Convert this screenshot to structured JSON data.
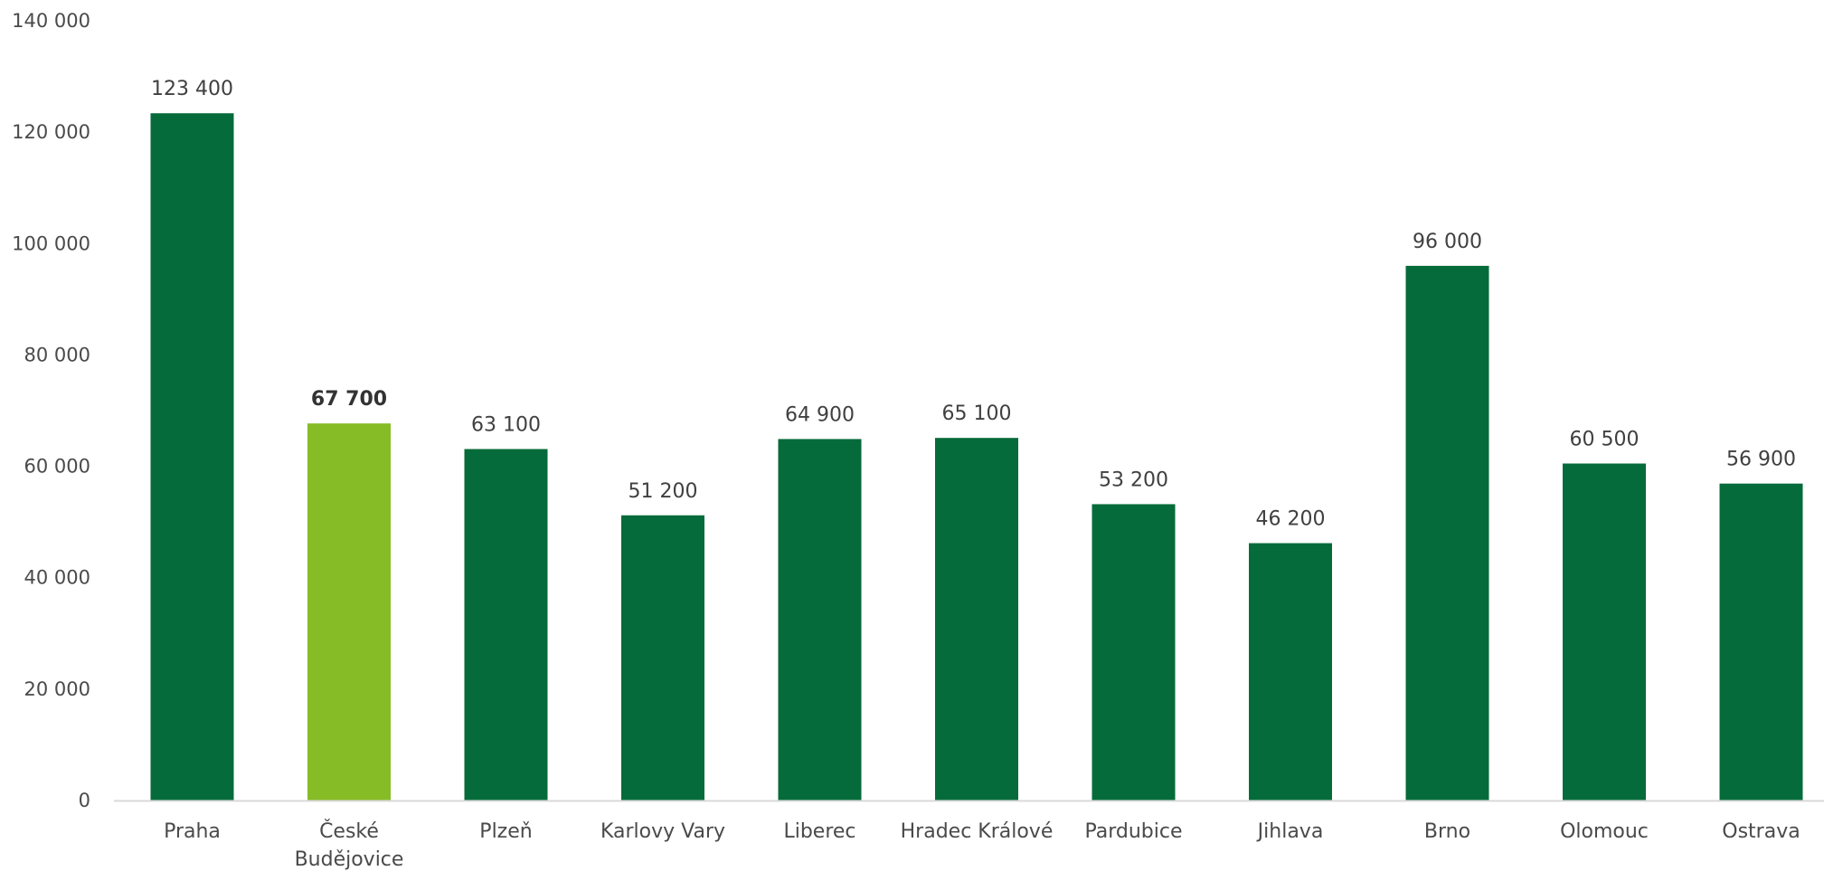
{
  "chart_data": {
    "type": "bar",
    "title": "",
    "xlabel": "",
    "ylabel": "",
    "ylim": [
      0,
      140000
    ],
    "yticks": [
      0,
      20000,
      40000,
      60000,
      80000,
      100000,
      120000,
      140000
    ],
    "ytick_labels": [
      "0",
      "20 000",
      "40 000",
      "60 000",
      "80 000",
      "100 000",
      "120 000",
      "140 000"
    ],
    "grid": false,
    "legend": "none",
    "categories": [
      [
        "Praha"
      ],
      [
        "České",
        "Budějovice"
      ],
      [
        "Plzeň"
      ],
      [
        "Karlovy Vary"
      ],
      [
        "Liberec"
      ],
      [
        "Hradec Králové"
      ],
      [
        "Pardubice"
      ],
      [
        "Jihlava"
      ],
      [
        "Brno"
      ],
      [
        "Olomouc"
      ],
      [
        "Ostrava"
      ]
    ],
    "values": [
      123400,
      67700,
      63100,
      51200,
      64900,
      65100,
      53200,
      46200,
      96000,
      60500,
      56900
    ],
    "value_labels": [
      "123 400",
      "67 700",
      "63 100",
      "51 200",
      "64 900",
      "65 100",
      "53 200",
      "46 200",
      "96 000",
      "60 500",
      "56 900"
    ],
    "highlight_index": 1,
    "colors": {
      "bar": "#066b3a",
      "highlight": "#86bc25",
      "axis": "#d9d9d9"
    }
  }
}
